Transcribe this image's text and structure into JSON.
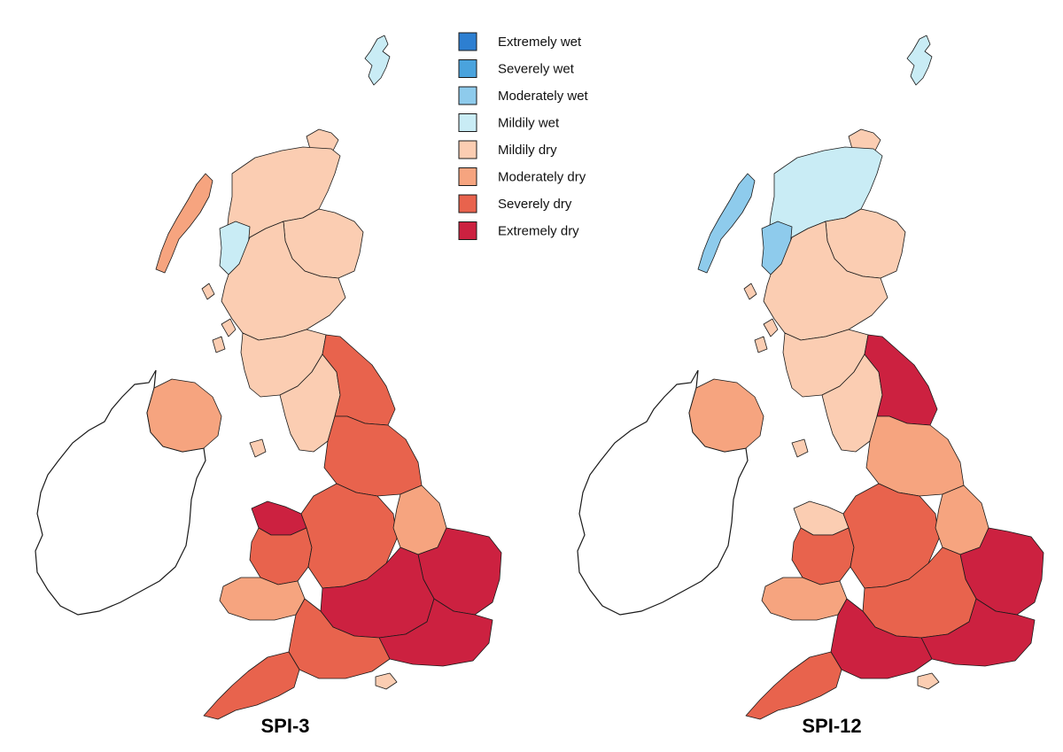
{
  "legend": {
    "items": [
      {
        "label": "Extremely wet",
        "color": "#2d7fd1"
      },
      {
        "label": "Severely wet",
        "color": "#4aa3dd"
      },
      {
        "label": "Moderately wet",
        "color": "#8ecbec"
      },
      {
        "label": "Mildily wet",
        "color": "#c9ecf5"
      },
      {
        "label": "Mildily dry",
        "color": "#fbcdb2"
      },
      {
        "label": "Moderately dry",
        "color": "#f6a47f"
      },
      {
        "label": "Severely dry",
        "color": "#e8634d"
      },
      {
        "label": "Extremely dry",
        "color": "#cc2140"
      }
    ]
  },
  "maps": [
    {
      "title": "SPI-3",
      "regions": {
        "shetland": "Mildily wet",
        "orkney": "Mildily dry",
        "outer_hebrides": "Moderately dry",
        "nw_highlands": "Mildily dry",
        "west_coast_strip": "Mildily wet",
        "ne_scotland": "Mildily dry",
        "central_scotland": "Mildily dry",
        "southern_uplands": "Mildily dry",
        "northern_ireland": "Moderately dry",
        "cumbria_nw": "Mildily dry",
        "northeast_england": "Severely dry",
        "yorkshire": "Severely dry",
        "north_wales": "Extremely dry",
        "mid_wales": "Severely dry",
        "south_wales": "Moderately dry",
        "midlands": "Severely dry",
        "lincolnshire": "Moderately dry",
        "east_anglia": "Extremely dry",
        "thames": "Extremely dry",
        "southeast": "Extremely dry",
        "wessex": "Severely dry",
        "southwest": "Severely dry",
        "isle_of_wight": "Mildily dry"
      }
    },
    {
      "title": "SPI-12",
      "regions": {
        "shetland": "Mildily wet",
        "orkney": "Mildily dry",
        "outer_hebrides": "Moderately wet",
        "nw_highlands": "Mildily wet",
        "west_coast_strip": "Moderately wet",
        "ne_scotland": "Mildily dry",
        "central_scotland": "Mildily dry",
        "southern_uplands": "Mildily dry",
        "northern_ireland": "Moderately dry",
        "cumbria_nw": "Mildily dry",
        "northeast_england": "Extremely dry",
        "yorkshire": "Moderately dry",
        "north_wales": "Mildily dry",
        "mid_wales": "Severely dry",
        "south_wales": "Moderately dry",
        "midlands": "Severely dry",
        "lincolnshire": "Moderately dry",
        "east_anglia": "Extremely dry",
        "thames": "Severely dry",
        "southeast": "Extremely dry",
        "wessex": "Extremely dry",
        "southwest": "Severely dry",
        "isle_of_wight": "Mildily dry"
      }
    }
  ]
}
